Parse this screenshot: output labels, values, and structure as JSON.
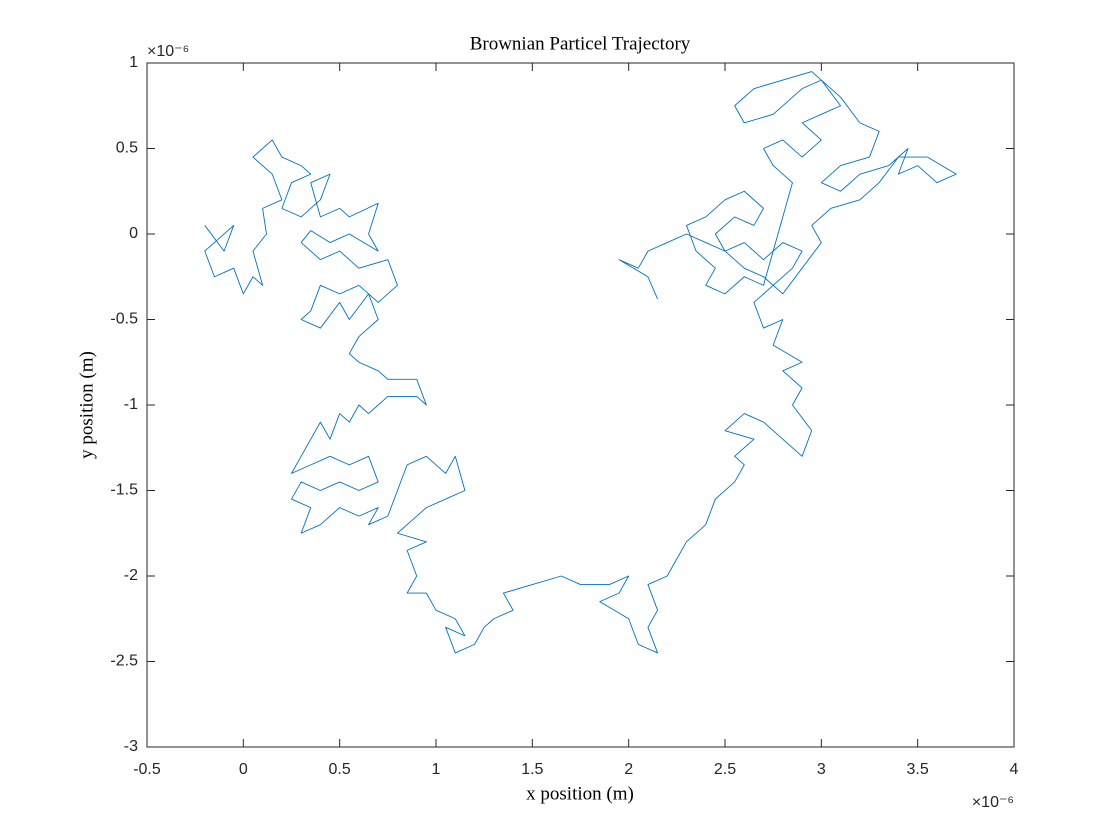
{
  "chart_data": {
    "type": "line",
    "title": "Brownian Particel Trajectory",
    "xlabel": "x position (m)",
    "ylabel": "y position (m)",
    "x_exponent": "×10⁻⁶",
    "y_exponent": "×10⁻⁶",
    "xlim": [
      -0.5,
      4
    ],
    "ylim": [
      -3,
      1
    ],
    "xticks": [
      -0.5,
      0,
      0.5,
      1,
      1.5,
      2,
      2.5,
      3,
      3.5,
      4
    ],
    "yticks": [
      -3,
      -2.5,
      -2,
      -1.5,
      -1,
      -0.5,
      0,
      0.5,
      1
    ],
    "grid": false,
    "series": [
      {
        "color": "#0072BD",
        "x": [
          -0.2,
          -0.1,
          -0.05,
          -0.2,
          -0.15,
          -0.05,
          0,
          0.05,
          0.1,
          0.05,
          0.12,
          0.1,
          0.2,
          0.15,
          0.05,
          0.15,
          0.2,
          0.3,
          0.35,
          0.25,
          0.2,
          0.3,
          0.4,
          0.45,
          0.35,
          0.4,
          0.5,
          0.55,
          0.7,
          0.65,
          0.7,
          0.55,
          0.45,
          0.35,
          0.3,
          0.4,
          0.5,
          0.6,
          0.75,
          0.8,
          0.7,
          0.6,
          0.5,
          0.4,
          0.35,
          0.3,
          0.4,
          0.5,
          0.55,
          0.65,
          0.7,
          0.6,
          0.55,
          0.6,
          0.7,
          0.75,
          0.9,
          0.95,
          0.9,
          0.75,
          0.7,
          0.65,
          0.6,
          0.55,
          0.5,
          0.45,
          0.4,
          0.35,
          0.3,
          0.25,
          0.35,
          0.45,
          0.55,
          0.65,
          0.7,
          0.6,
          0.5,
          0.4,
          0.3,
          0.25,
          0.35,
          0.3,
          0.4,
          0.5,
          0.6,
          0.7,
          0.65,
          0.75,
          0.8,
          0.85,
          0.95,
          1.05,
          1.1,
          1.15,
          1.05,
          0.95,
          0.85,
          0.8,
          0.95,
          0.85,
          0.9,
          0.85,
          0.95,
          1,
          1.1,
          1.15,
          1.05,
          1.1,
          1.2,
          1.25,
          1.3,
          1.4,
          1.35,
          1.5,
          1.65,
          1.75,
          1.9,
          2,
          1.95,
          1.85,
          2,
          2.05,
          2.15,
          2.1,
          2.15,
          2.1,
          2.2,
          2.25,
          2.3,
          2.4,
          2.45,
          2.55,
          2.6,
          2.55,
          2.65,
          2.5,
          2.6,
          2.7,
          2.8,
          2.9,
          2.95,
          2.85,
          2.9,
          2.8,
          2.9,
          2.75,
          2.8,
          2.7,
          2.65,
          2.75,
          2.85,
          2.9,
          2.8,
          2.7,
          2.6,
          2.5,
          2.45,
          2.55,
          2.65,
          2.7,
          2.6,
          2.5,
          2.4,
          2.3,
          2.35,
          2.45,
          2.4,
          2.5,
          2.6,
          2.7,
          2.8,
          2.85,
          2.75,
          2.7,
          2.8,
          2.9,
          3,
          2.9,
          3,
          3.1,
          3,
          2.9,
          2.75,
          2.6,
          2.55,
          2.65,
          2.8,
          2.95,
          3.1,
          3.2,
          3.3,
          3.25,
          3.1,
          3,
          3.1,
          3.2,
          3.35,
          3.45,
          3.4,
          3.5,
          3.6,
          3.7,
          3.55,
          3.4,
          3.3,
          3.2,
          3.05,
          2.95,
          3,
          2.9,
          2.8,
          2.7,
          2.6,
          2.5,
          2.4,
          2.3,
          2.2,
          2.1,
          2.05,
          1.95,
          2.1,
          2.15
        ],
        "values": [
          0.05,
          -0.1,
          0.05,
          -0.1,
          -0.25,
          -0.2,
          -0.35,
          -0.25,
          -0.3,
          -0.1,
          0,
          0.15,
          0.2,
          0.35,
          0.45,
          0.55,
          0.45,
          0.4,
          0.35,
          0.3,
          0.15,
          0.1,
          0.2,
          0.35,
          0.3,
          0.1,
          0.15,
          0.1,
          0.18,
          0,
          -0.1,
          0,
          -0.05,
          0.02,
          -0.05,
          -0.15,
          -0.1,
          -0.2,
          -0.15,
          -0.3,
          -0.4,
          -0.3,
          -0.35,
          -0.3,
          -0.45,
          -0.5,
          -0.55,
          -0.4,
          -0.5,
          -0.35,
          -0.5,
          -0.6,
          -0.7,
          -0.75,
          -0.8,
          -0.85,
          -0.85,
          -1,
          -0.95,
          -0.95,
          -1,
          -1.05,
          -1,
          -1.1,
          -1.05,
          -1.2,
          -1.1,
          -1.2,
          -1.3,
          -1.4,
          -1.35,
          -1.3,
          -1.35,
          -1.3,
          -1.45,
          -1.5,
          -1.45,
          -1.5,
          -1.45,
          -1.55,
          -1.6,
          -1.75,
          -1.7,
          -1.6,
          -1.65,
          -1.6,
          -1.7,
          -1.65,
          -1.5,
          -1.35,
          -1.3,
          -1.4,
          -1.3,
          -1.5,
          -1.55,
          -1.6,
          -1.7,
          -1.75,
          -1.8,
          -1.85,
          -2,
          -2.1,
          -2.1,
          -2.2,
          -2.25,
          -2.35,
          -2.3,
          -2.45,
          -2.4,
          -2.3,
          -2.25,
          -2.2,
          -2.1,
          -2.05,
          -2,
          -2.05,
          -2.05,
          -2,
          -2.1,
          -2.15,
          -2.25,
          -2.4,
          -2.45,
          -2.3,
          -2.2,
          -2.05,
          -2,
          -1.9,
          -1.8,
          -1.7,
          -1.55,
          -1.45,
          -1.35,
          -1.3,
          -1.2,
          -1.15,
          -1.05,
          -1.1,
          -1.2,
          -1.3,
          -1.15,
          -1,
          -0.9,
          -0.8,
          -0.75,
          -0.65,
          -0.5,
          -0.55,
          -0.4,
          -0.3,
          -0.2,
          -0.1,
          -0.05,
          -0.15,
          -0.05,
          -0.1,
          0,
          0.1,
          0.05,
          0.15,
          0.25,
          0.2,
          0.1,
          0.05,
          -0.1,
          -0.2,
          -0.3,
          -0.35,
          -0.25,
          -0.3,
          0.1,
          0.3,
          0.4,
          0.5,
          0.55,
          0.45,
          0.55,
          0.65,
          0.7,
          0.75,
          0.9,
          0.85,
          0.7,
          0.65,
          0.75,
          0.85,
          0.9,
          0.95,
          0.8,
          0.65,
          0.6,
          0.45,
          0.4,
          0.3,
          0.25,
          0.35,
          0.4,
          0.5,
          0.35,
          0.4,
          0.3,
          0.35,
          0.45,
          0.45,
          0.3,
          0.2,
          0.15,
          0.05,
          -0.05,
          -0.2,
          -0.35,
          -0.25,
          -0.2,
          -0.1,
          -0.05,
          0,
          -0.05,
          -0.1,
          -0.2,
          -0.15,
          -0.25,
          -0.38
        ]
      }
    ]
  }
}
